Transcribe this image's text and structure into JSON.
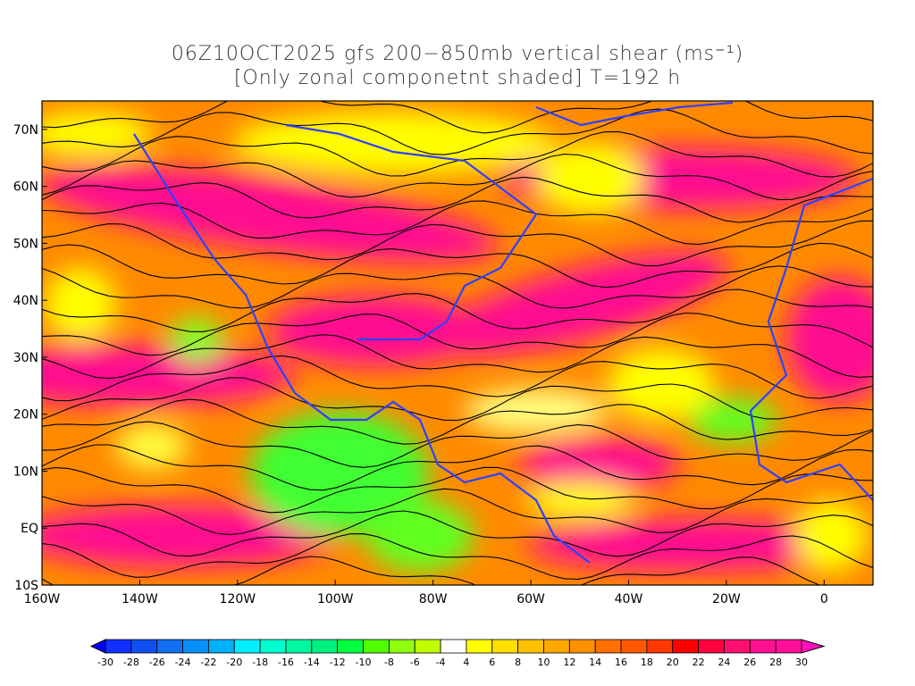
{
  "title": {
    "line1": "06Z10OCT2025 gfs 200−850mb vertical shear (ms⁻¹)",
    "line2": "[Only zonal componetnt shaded] T=192 h"
  },
  "map": {
    "lon_range": [
      -160,
      10
    ],
    "lat_range": [
      -10,
      75
    ],
    "lat_ticks": [
      {
        "v": 70,
        "label": "70N"
      },
      {
        "v": 60,
        "label": "60N"
      },
      {
        "v": 50,
        "label": "50N"
      },
      {
        "v": 40,
        "label": "40N"
      },
      {
        "v": 30,
        "label": "30N"
      },
      {
        "v": 20,
        "label": "20N"
      },
      {
        "v": 10,
        "label": "10N"
      },
      {
        "v": 0,
        "label": "EQ"
      },
      {
        "v": -10,
        "label": "10S"
      }
    ],
    "lon_ticks": [
      {
        "v": -160,
        "label": "160W"
      },
      {
        "v": -140,
        "label": "140W"
      },
      {
        "v": -120,
        "label": "120W"
      },
      {
        "v": -100,
        "label": "100W"
      },
      {
        "v": -80,
        "label": "80W"
      },
      {
        "v": -60,
        "label": "60W"
      },
      {
        "v": -40,
        "label": "40W"
      },
      {
        "v": -20,
        "label": "20W"
      },
      {
        "v": 0,
        "label": "0"
      }
    ]
  },
  "colorbar": {
    "labels": [
      "-30",
      "-28",
      "-26",
      "-24",
      "-22",
      "-20",
      "-18",
      "-16",
      "-14",
      "-12",
      "-10",
      "-8",
      "-6",
      "-4",
      "4",
      "6",
      "8",
      "10",
      "12",
      "14",
      "16",
      "18",
      "20",
      "22",
      "24",
      "26",
      "28",
      "30"
    ],
    "colors": [
      "#1030ff",
      "#1050f0",
      "#1070f0",
      "#0990f8",
      "#00b0f8",
      "#00f0ff",
      "#00ffd0",
      "#00f8a0",
      "#00f080",
      "#00ff40",
      "#50ff00",
      "#90ff10",
      "#c0ff00",
      "#ffffff",
      "#ffff00",
      "#ffe000",
      "#ffc000",
      "#ffa800",
      "#ff9000",
      "#ff7000",
      "#ff5800",
      "#ff3800",
      "#ff0000",
      "#ff0040",
      "#ff1070",
      "#ff1090",
      "#ff1098"
    ],
    "under_color": "#0000ff",
    "over_color": "#ff10c0"
  }
}
